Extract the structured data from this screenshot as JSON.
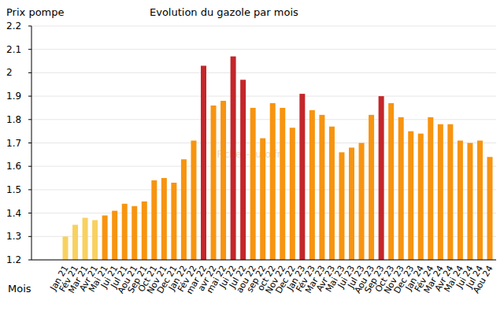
{
  "chart_data": {
    "type": "bar",
    "title": "Evolution du gazole par mois",
    "y_label": "Prix pompe",
    "x_label": "Mois",
    "annotations": [
      "Fiches-auto.fr"
    ],
    "categories": [
      "Jan 21",
      "Fév 21",
      "Mar 21",
      "Avr 21",
      "Mai 21",
      "Jui 21",
      "Jul 21",
      "Aou 21",
      "Sep 21",
      "Oct 21",
      "Nov 21",
      "Dec 21",
      "Jan 22",
      "Fév 22",
      "mar 22",
      "avr 22",
      "mai 22",
      "Jui 22",
      "Jul 22",
      "aou 22",
      "sep 22",
      "oct 22",
      "Nov 22",
      "Dec 22",
      "Jan 23",
      "Fév 23",
      "Mar 23",
      "Avr 23",
      "Mai 23",
      "Jui 23",
      "Jul 23",
      "Aou 23",
      "Sep 23",
      "Oct 23",
      "Nov 23",
      "Dec 23",
      "Jan 24",
      "Fév 24",
      "Mar 24",
      "Avr 24",
      "Mai 24",
      "Jui 24",
      "Jul 24",
      "Aou 24"
    ],
    "values": [
      1.3,
      1.35,
      1.38,
      1.37,
      1.39,
      1.41,
      1.44,
      1.43,
      1.45,
      1.54,
      1.55,
      1.53,
      1.63,
      1.71,
      2.03,
      1.86,
      1.88,
      2.07,
      1.97,
      1.85,
      1.72,
      1.87,
      1.85,
      1.765,
      1.91,
      1.84,
      1.82,
      1.77,
      1.66,
      1.68,
      1.7,
      1.82,
      1.9,
      1.87,
      1.81,
      1.75,
      1.74,
      1.81,
      1.78,
      1.78,
      1.71,
      1.7,
      1.71,
      1.64
    ],
    "colors": [
      "#f8d160",
      "#f8d160",
      "#f8d160",
      "#f8d160",
      "#f79410",
      "#f79410",
      "#f79410",
      "#f79410",
      "#f79410",
      "#f79410",
      "#f79410",
      "#f79410",
      "#f79410",
      "#f79410",
      "#c4262a",
      "#f79410",
      "#f79410",
      "#c4262a",
      "#c4262a",
      "#f79410",
      "#f79410",
      "#f79410",
      "#f79410",
      "#f79410",
      "#c4262a",
      "#f79410",
      "#f79410",
      "#f79410",
      "#f79410",
      "#f79410",
      "#f79410",
      "#f79410",
      "#c4262a",
      "#f79410",
      "#f79410",
      "#f79410",
      "#f79410",
      "#f79410",
      "#f79410",
      "#f79410",
      "#f79410",
      "#f79410",
      "#f79410",
      "#f79410"
    ],
    "ylim": [
      1.2,
      2.2
    ],
    "yticks": [
      1.2,
      1.3,
      1.4,
      1.5,
      1.6,
      1.7,
      1.8,
      1.9,
      2,
      2.1,
      2.2
    ],
    "grid": true
  }
}
